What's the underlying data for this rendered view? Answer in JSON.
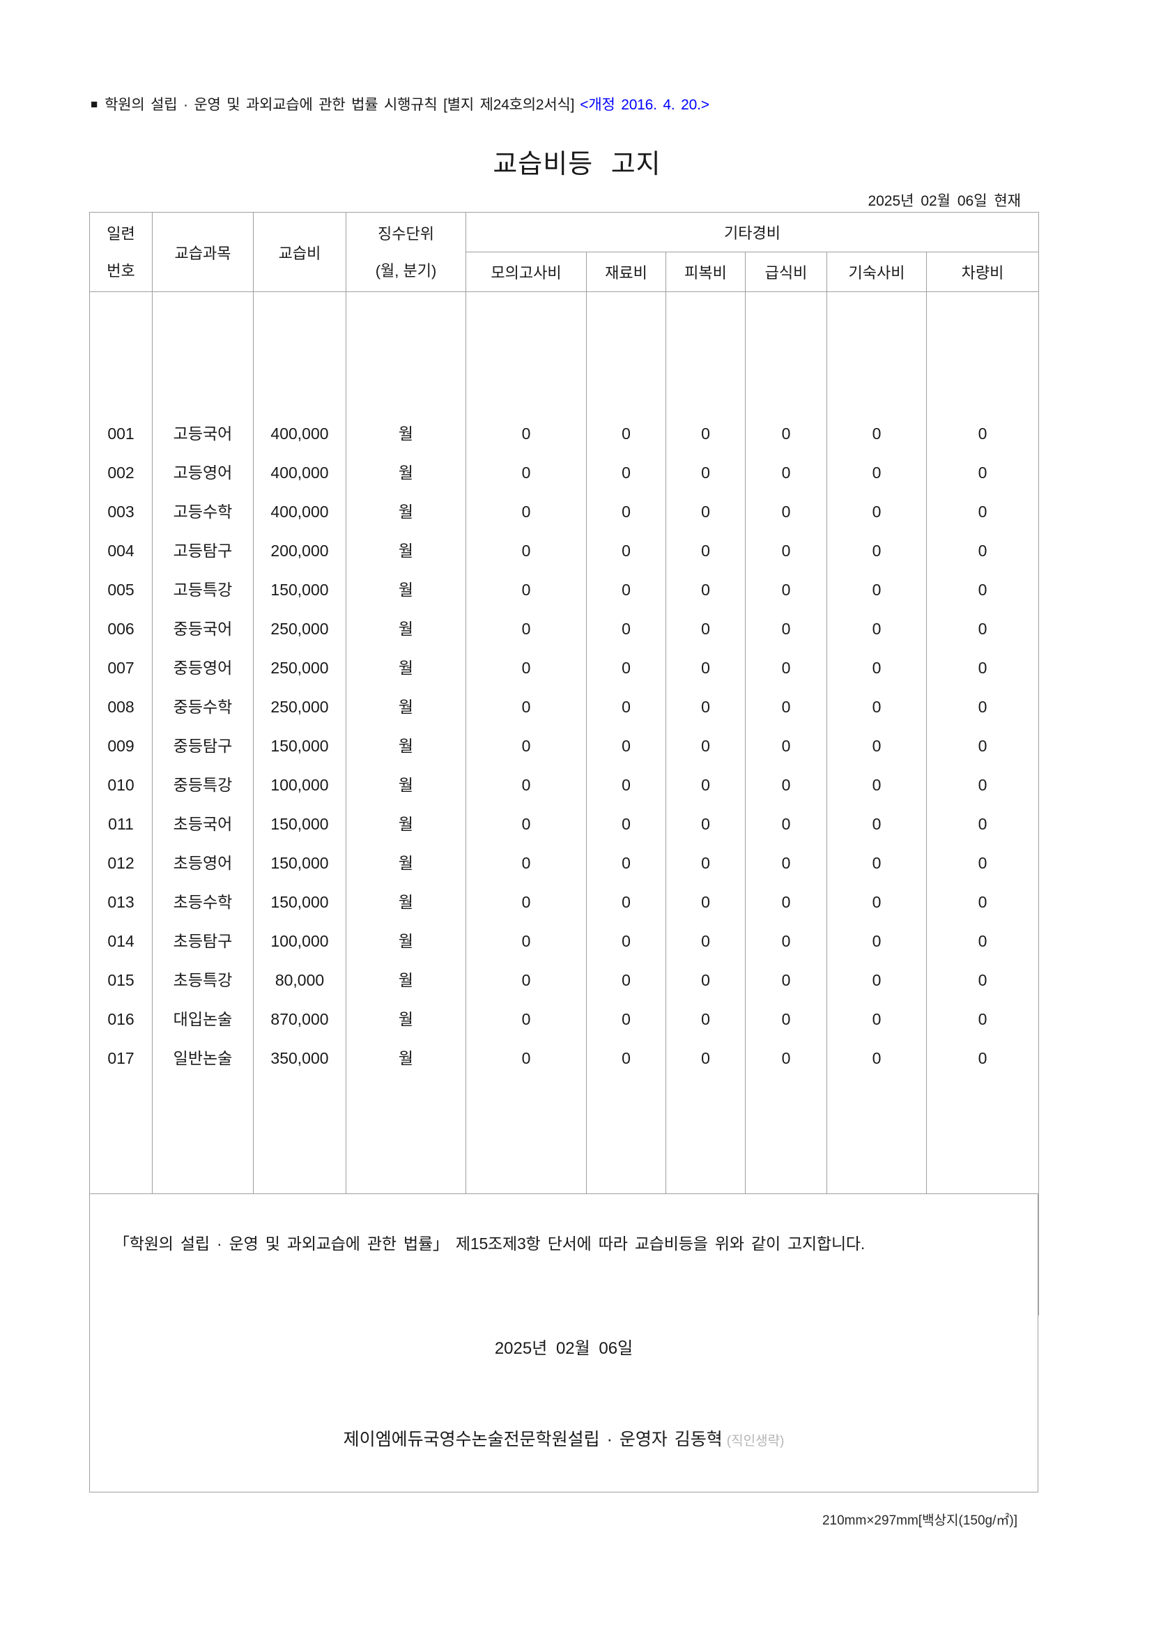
{
  "colors": {
    "revision_blue": "#0000ff",
    "seal_gray": "#b5b5b5",
    "border_gray": "#9f9f9f"
  },
  "page": {
    "top_note_marker": "■",
    "top_note_main": "학원의 설립 · 운영 및 과외교습에 관한 법률 시행규칙 [별지 제24호의2서식]",
    "top_note_revision": "<개정 2016. 4. 20.>",
    "title": "교습비등 고지",
    "as_of": "2025년 02월 06일 현재"
  },
  "table": {
    "header": {
      "serial": [
        "일련",
        "번호"
      ],
      "subject": "교습과목",
      "fee": "교습비",
      "unit": [
        "징수단위",
        "(월, 분기)"
      ],
      "other_expenses": "기타경비",
      "sub_columns": [
        "모의고사비",
        "재료비",
        "피복비",
        "급식비",
        "기숙사비",
        "차량비"
      ]
    },
    "rows": [
      {
        "no": "001",
        "subject": "고등국어",
        "fee": "400,000",
        "unit": "월",
        "others": [
          "0",
          "0",
          "0",
          "0",
          "0",
          "0"
        ]
      },
      {
        "no": "002",
        "subject": "고등영어",
        "fee": "400,000",
        "unit": "월",
        "others": [
          "0",
          "0",
          "0",
          "0",
          "0",
          "0"
        ]
      },
      {
        "no": "003",
        "subject": "고등수학",
        "fee": "400,000",
        "unit": "월",
        "others": [
          "0",
          "0",
          "0",
          "0",
          "0",
          "0"
        ]
      },
      {
        "no": "004",
        "subject": "고등탐구",
        "fee": "200,000",
        "unit": "월",
        "others": [
          "0",
          "0",
          "0",
          "0",
          "0",
          "0"
        ]
      },
      {
        "no": "005",
        "subject": "고등특강",
        "fee": "150,000",
        "unit": "월",
        "others": [
          "0",
          "0",
          "0",
          "0",
          "0",
          "0"
        ]
      },
      {
        "no": "006",
        "subject": "중등국어",
        "fee": "250,000",
        "unit": "월",
        "others": [
          "0",
          "0",
          "0",
          "0",
          "0",
          "0"
        ]
      },
      {
        "no": "007",
        "subject": "중등영어",
        "fee": "250,000",
        "unit": "월",
        "others": [
          "0",
          "0",
          "0",
          "0",
          "0",
          "0"
        ]
      },
      {
        "no": "008",
        "subject": "중등수학",
        "fee": "250,000",
        "unit": "월",
        "others": [
          "0",
          "0",
          "0",
          "0",
          "0",
          "0"
        ]
      },
      {
        "no": "009",
        "subject": "중등탐구",
        "fee": "150,000",
        "unit": "월",
        "others": [
          "0",
          "0",
          "0",
          "0",
          "0",
          "0"
        ]
      },
      {
        "no": "010",
        "subject": "중등특강",
        "fee": "100,000",
        "unit": "월",
        "others": [
          "0",
          "0",
          "0",
          "0",
          "0",
          "0"
        ]
      },
      {
        "no": "011",
        "subject": "초등국어",
        "fee": "150,000",
        "unit": "월",
        "others": [
          "0",
          "0",
          "0",
          "0",
          "0",
          "0"
        ]
      },
      {
        "no": "012",
        "subject": "초등영어",
        "fee": "150,000",
        "unit": "월",
        "others": [
          "0",
          "0",
          "0",
          "0",
          "0",
          "0"
        ]
      },
      {
        "no": "013",
        "subject": "초등수학",
        "fee": "150,000",
        "unit": "월",
        "others": [
          "0",
          "0",
          "0",
          "0",
          "0",
          "0"
        ]
      },
      {
        "no": "014",
        "subject": "초등탐구",
        "fee": "100,000",
        "unit": "월",
        "others": [
          "0",
          "0",
          "0",
          "0",
          "0",
          "0"
        ]
      },
      {
        "no": "015",
        "subject": "초등특강",
        "fee": "80,000",
        "unit": "월",
        "others": [
          "0",
          "0",
          "0",
          "0",
          "0",
          "0"
        ]
      },
      {
        "no": "016",
        "subject": "대입논술",
        "fee": "870,000",
        "unit": "월",
        "others": [
          "0",
          "0",
          "0",
          "0",
          "0",
          "0"
        ]
      },
      {
        "no": "017",
        "subject": "일반논술",
        "fee": "350,000",
        "unit": "월",
        "others": [
          "0",
          "0",
          "0",
          "0",
          "0",
          "0"
        ]
      }
    ]
  },
  "footer": {
    "legal_text": "「학원의 설립 · 운영 및 과외교습에 관한 법률」 제15조제3항 단서에 따라 교습비등을 위와 같이 고지합니다.",
    "date": "2025년 02월 06일",
    "signer": "제이엠에듀국영수논술전문학원설립 · 운영자 김동혁",
    "seal_note": "(직인생략)"
  },
  "paper_note": "210mm×297mm[백상지(150g/㎡)]"
}
